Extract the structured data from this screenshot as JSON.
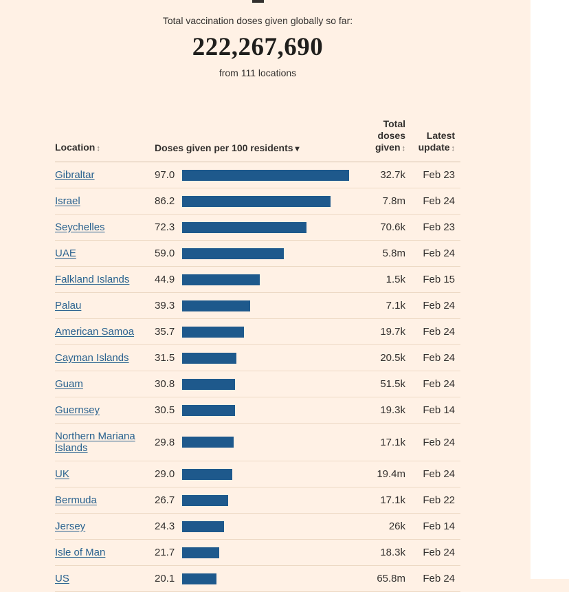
{
  "page": {
    "background": "#FFF1E5",
    "accent_tick_color": "#33302E"
  },
  "headline": {
    "label": "Total vaccination doses given globally so far:",
    "number": "222,267,690",
    "subtitle": "from 111 locations"
  },
  "table": {
    "bar_color": "#1E598C",
    "link_color": "#2A628F",
    "bar_scale_max": 100,
    "columns": {
      "location": "Location",
      "doses_per_100": "Doses given per 100 residents",
      "total_doses": "Total doses given",
      "latest_update": "Latest update"
    },
    "sort_icons": {
      "unsorted": "↕",
      "sorted_desc": "▾"
    },
    "rows": [
      {
        "location": "Gibraltar",
        "per100": "97.0",
        "total": "32.7k",
        "updated": "Feb 23"
      },
      {
        "location": "Israel",
        "per100": "86.2",
        "total": "7.8m",
        "updated": "Feb 24"
      },
      {
        "location": "Seychelles",
        "per100": "72.3",
        "total": "70.6k",
        "updated": "Feb 23"
      },
      {
        "location": "UAE",
        "per100": "59.0",
        "total": "5.8m",
        "updated": "Feb 24"
      },
      {
        "location": "Falkland Islands",
        "per100": "44.9",
        "total": "1.5k",
        "updated": "Feb 15"
      },
      {
        "location": "Palau",
        "per100": "39.3",
        "total": "7.1k",
        "updated": "Feb 24"
      },
      {
        "location": "American Samoa",
        "per100": "35.7",
        "total": "19.7k",
        "updated": "Feb 24"
      },
      {
        "location": "Cayman Islands",
        "per100": "31.5",
        "total": "20.5k",
        "updated": "Feb 24"
      },
      {
        "location": "Guam",
        "per100": "30.8",
        "total": "51.5k",
        "updated": "Feb 24"
      },
      {
        "location": "Guernsey",
        "per100": "30.5",
        "total": "19.3k",
        "updated": "Feb 14"
      },
      {
        "location": "Northern Mariana Islands",
        "per100": "29.8",
        "total": "17.1k",
        "updated": "Feb 24"
      },
      {
        "location": "UK",
        "per100": "29.0",
        "total": "19.4m",
        "updated": "Feb 24"
      },
      {
        "location": "Bermuda",
        "per100": "26.7",
        "total": "17.1k",
        "updated": "Feb 22"
      },
      {
        "location": "Jersey",
        "per100": "24.3",
        "total": "26k",
        "updated": "Feb 14"
      },
      {
        "location": "Isle of Man",
        "per100": "21.7",
        "total": "18.3k",
        "updated": "Feb 24"
      },
      {
        "location": "US",
        "per100": "20.1",
        "total": "65.8m",
        "updated": "Feb 24"
      }
    ]
  },
  "chart_data": {
    "type": "bar",
    "orientation": "horizontal",
    "title": "Doses given per 100 residents",
    "categories": [
      "Gibraltar",
      "Israel",
      "Seychelles",
      "UAE",
      "Falkland Islands",
      "Palau",
      "American Samoa",
      "Cayman Islands",
      "Guam",
      "Guernsey",
      "Northern Mariana Islands",
      "UK",
      "Bermuda",
      "Jersey",
      "Isle of Man",
      "US"
    ],
    "values": [
      97.0,
      86.2,
      72.3,
      59.0,
      44.9,
      39.3,
      35.7,
      31.5,
      30.8,
      30.5,
      29.8,
      29.0,
      26.7,
      24.3,
      21.7,
      20.1
    ],
    "xlim": [
      0,
      100
    ],
    "bar_color": "#1E598C"
  }
}
